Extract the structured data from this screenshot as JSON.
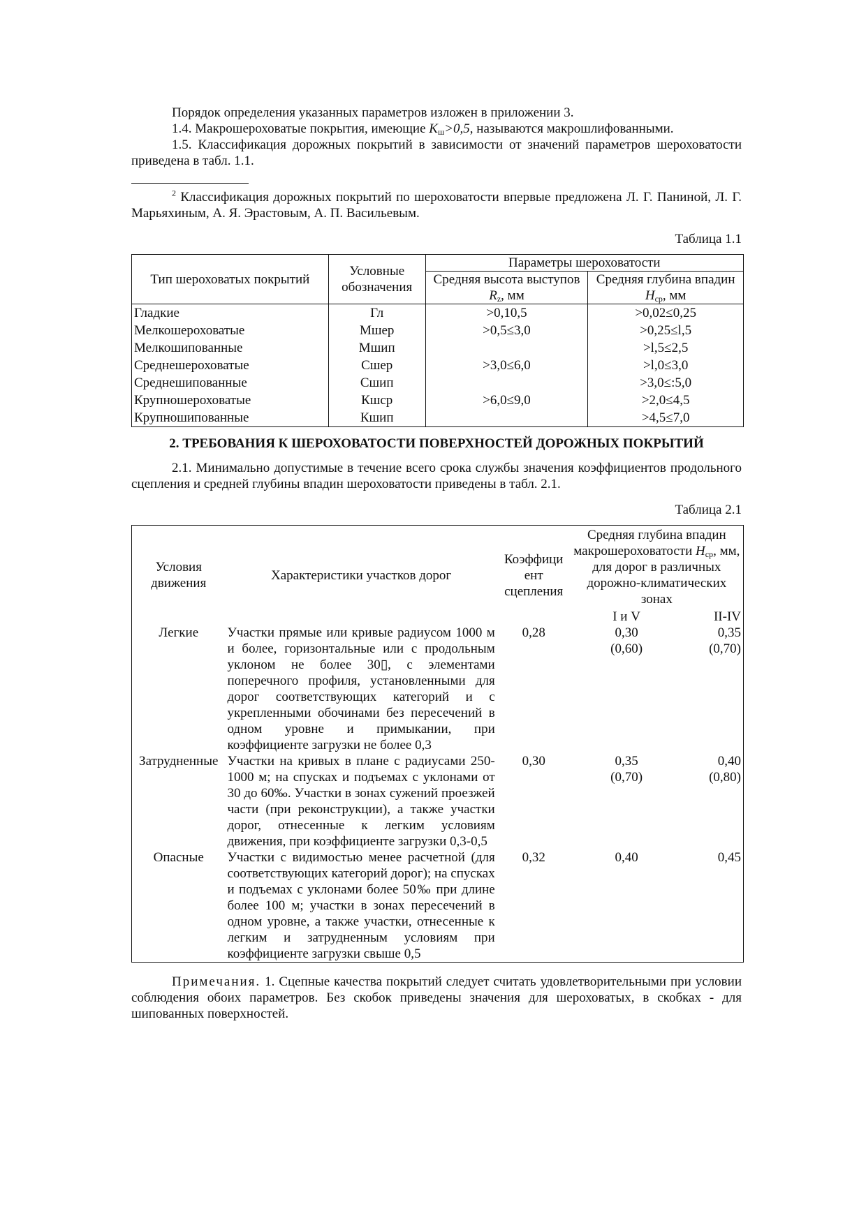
{
  "intro": {
    "p1": "Порядок определения указанных параметров изложен в приложении 3.",
    "p2_pre": "1.4. Макрошероховатые покрытия, имеющие ",
    "p2_k": "K",
    "p2_ksub": "ш",
    "p2_val": ">0,5",
    "p2_post": ", называются макрошлифованными.",
    "p3": "1.5. Классификация дорожных покрытий в зависимости от значений параметров шероховатости приведена в табл. 1.1."
  },
  "footnote": {
    "mark": "2",
    "text": " Классификация дорожных покрытий по шероховатости впервые предложена Л. Г. Паниной, Л. Г. Марьяхиным, А. Я. Эрастовым, А. П. Васильевым."
  },
  "table1": {
    "label": "Таблица 1.1",
    "h_type": "Тип шероховатых покрытий",
    "h_symbol": "Условные обозначения",
    "h_params": "Параметры шероховатости",
    "h_rz_pre": "Средняя высота выступов ",
    "h_rz_sym": "R",
    "h_rz_sub": "z",
    "h_rz_post": ", мм",
    "h_hcp_pre": "Средняя глубина впадин ",
    "h_hcp_sym": "H",
    "h_hcp_sub": "ср",
    "h_hcp_post": ", мм",
    "rows": [
      {
        "type": "Гладкие",
        "symbol": "Гл",
        "rz": ">0,10,5",
        "hcp": ">0,02≤0,25"
      },
      {
        "type": "Мелкошероховатые",
        "symbol": "Мшер",
        "rz": ">0,5≤3,0",
        "hcp": ">0,25≤l,5"
      },
      {
        "type": "Мелкошипованные",
        "symbol": "Мшип",
        "rz": "",
        "hcp": ">l,5≤2,5"
      },
      {
        "type": "Среднешероховатые",
        "symbol": "Сшер",
        "rz": ">3,0≤6,0",
        "hcp": ">l,0≤3,0"
      },
      {
        "type": "Среднешипованные",
        "symbol": "Сшип",
        "rz": "",
        "hcp": ">3,0≤:5,0"
      },
      {
        "type": "Крупношероховатые",
        "symbol": "Кшср",
        "rz": ">6,0≤9,0",
        "hcp": ">2,0≤4,5"
      },
      {
        "type": "Крупношипованные",
        "symbol": "Кшип",
        "rz": "",
        "hcp": ">4,5≤7,0"
      }
    ]
  },
  "section2": {
    "heading": "2. ТРЕБОВАНИЯ К ШЕРОХОВАТОСТИ ПОВЕРХНОСТЕЙ ДОРОЖНЫХ ПОКРЫТИЙ",
    "p1": "2.1. Минимально допустимые в течение всего срока службы значения коэффициентов продольного сцепления и средней глубины впадин шероховатости приведены в табл. 2.1."
  },
  "table2": {
    "label": "Таблица 2.1",
    "h_cond": "Условия движения",
    "h_char": "Характеристики участков дорог",
    "h_coef": "Коэффици ент сцепления",
    "h_depth_pre": "Средняя глубина впадин макрошероховатости ",
    "h_depth_sym": "H",
    "h_depth_sub": "ср",
    "h_depth_post": ", мм, для дорог в различных дорожно-климатических зонах",
    "h_zone1": "I и V",
    "h_zone2": "II-IV",
    "rows": [
      {
        "cond": "Легкие",
        "char": "Участки прямые или кривые радиусом 1000 м и более, горизонтальные или с продольным уклоном не более 30▯, с элементами поперечного профиля, установленными для дорог соответствующих категорий и с укрепленными обочинами без пересечений в одном уровне и примыкании, при коэффициенте загрузки не более 0,3",
        "coef": "0,28",
        "z1": "0,30",
        "z1s": "(0,60)",
        "z2": "0,35",
        "z2s": "(0,70)"
      },
      {
        "cond": "Затрудненные",
        "char": "Участки на кривых в плане с радиусами 250-1000 м; на спусках и подъемах с уклонами от 30 до 60‰. Участки в зонах сужений проезжей части (при реконструкции), а также участки дорог, отнесенные к легким условиям движения, при коэффициенте загрузки 0,3-0,5",
        "coef": "0,30",
        "z1": "0,35",
        "z1s": "(0,70)",
        "z2": "0,40",
        "z2s": "(0,80)"
      },
      {
        "cond": "Опасные",
        "char": "Участки с видимостью менее расчетной (для соответствующих категорий дорог); на спусках и подъемах с уклонами более 50‰ при длине более 100 м; участки в зонах пересечений в одном уровне, а также участки, отнесенные к легким и затрудненным условиям при коэффициенте загрузки свыше 0,5",
        "coef": "0,32",
        "z1": "0,40",
        "z1s": "",
        "z2": "0,45",
        "z2s": ""
      }
    ]
  },
  "notes": {
    "label": "Примечания.",
    "text": " 1. Сцепные качества покрытий следует считать удовлетворительными при условии соблюдения обоих параметров. Без скобок приведены значения для шероховатых, в скобках - для шипованных поверхностей."
  }
}
